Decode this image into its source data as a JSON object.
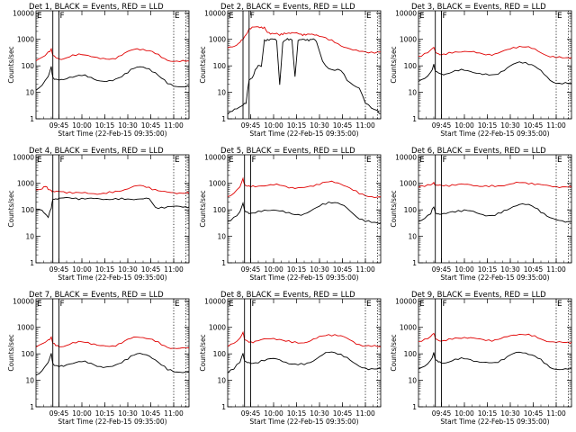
{
  "figure": {
    "x_axis_label": "Start Time (22-Feb-15 09:35:00)",
    "y_axis_label": "Counts/sec",
    "x_tick_labels": [
      "09:45",
      "10:00",
      "10:15",
      "10:30",
      "10:45",
      "11:00"
    ],
    "y_tick_labels": [
      "1",
      "10",
      "100",
      "1000",
      "10000"
    ],
    "flag_labels": [
      "E",
      "F",
      "E"
    ],
    "colors": {
      "events": "#000000",
      "lld": "#e00000",
      "markers": "#000000"
    },
    "line_styles": {
      "flare_window": "solid",
      "eclipse_markers": "dotted"
    }
  },
  "chart_data": [
    {
      "type": "line",
      "title": "Det 1, BLACK = Events, RED = LLD",
      "xlabel": "Start Time (22-Feb-15 09:35:00)",
      "ylabel": "Counts/sec",
      "x_unit": "minutes after 09:35:00",
      "yscale": "log",
      "ylim": [
        1,
        12000
      ],
      "xlim": [
        0,
        100
      ],
      "x": [
        0,
        4,
        8,
        10,
        11,
        13,
        15,
        18,
        22,
        26,
        30,
        34,
        38,
        42,
        46,
        50,
        54,
        58,
        62,
        66,
        70,
        74,
        78,
        82,
        86,
        90,
        94,
        98,
        100
      ],
      "series": [
        {
          "name": "BLACK = Events",
          "values": [
            12,
            18,
            38,
            90,
            35,
            30,
            28,
            30,
            38,
            42,
            45,
            40,
            33,
            28,
            26,
            27,
            34,
            48,
            70,
            85,
            86,
            75,
            55,
            35,
            22,
            18,
            17,
            17,
            17
          ]
        },
        {
          "name": "RED = LLD",
          "values": [
            150,
            200,
            320,
            420,
            240,
            200,
            185,
            190,
            230,
            260,
            280,
            260,
            220,
            185,
            175,
            180,
            220,
            290,
            370,
            430,
            420,
            380,
            300,
            220,
            170,
            155,
            150,
            150,
            150
          ]
        }
      ]
    },
    {
      "type": "line",
      "title": "Det 2, BLACK = Events, RED = LLD",
      "xlabel": "Start Time (22-Feb-15 09:35:00)",
      "ylabel": "Counts/sec",
      "x_unit": "minutes after 09:35:00",
      "yscale": "log",
      "ylim": [
        1,
        12000
      ],
      "xlim": [
        0,
        100
      ],
      "x": [
        0,
        3,
        6,
        8,
        10,
        12,
        14,
        16,
        18,
        20,
        22,
        24,
        26,
        28,
        30,
        32,
        34,
        36,
        38,
        40,
        42,
        44,
        46,
        48,
        50,
        52,
        54,
        56,
        58,
        62,
        66,
        70,
        74,
        78,
        82,
        86,
        90,
        94,
        98,
        100
      ],
      "series": [
        {
          "name": "BLACK = Events",
          "values": [
            1.5,
            2,
            2.5,
            3,
            3.5,
            4,
            30,
            35,
            70,
            100,
            90,
            900,
            950,
            1000,
            1000,
            900,
            20,
            800,
            1000,
            1000,
            1000,
            40,
            900,
            950,
            950,
            950,
            950,
            1000,
            800,
            150,
            80,
            70,
            70,
            30,
            20,
            15,
            4,
            2.5,
            2,
            1.5
          ]
        },
        {
          "name": "RED = LLD",
          "values": [
            500,
            550,
            650,
            800,
            1000,
            1500,
            2500,
            2800,
            2800,
            2800,
            2800,
            2800,
            1800,
            1600,
            1700,
            1800,
            1500,
            1600,
            1700,
            1800,
            1800,
            1700,
            1600,
            1500,
            1500,
            1500,
            1500,
            1500,
            1500,
            1300,
            1000,
            800,
            600,
            500,
            400,
            350,
            330,
            320,
            320,
            320
          ]
        }
      ]
    },
    {
      "type": "line",
      "title": "Det 3, BLACK = Events, RED = LLD",
      "xlabel": "Start Time (22-Feb-15 09:35:00)",
      "ylabel": "Counts/sec",
      "x_unit": "minutes after 09:35:00",
      "yscale": "log",
      "ylim": [
        1,
        12000
      ],
      "xlim": [
        0,
        100
      ],
      "x": [
        0,
        4,
        8,
        10,
        11,
        13,
        15,
        18,
        22,
        26,
        30,
        34,
        38,
        42,
        46,
        50,
        54,
        58,
        62,
        66,
        70,
        74,
        78,
        82,
        86,
        90,
        94,
        98,
        100
      ],
      "series": [
        {
          "name": "BLACK = Events",
          "values": [
            25,
            32,
            55,
            110,
            60,
            52,
            48,
            50,
            60,
            68,
            72,
            65,
            55,
            48,
            45,
            46,
            58,
            80,
            110,
            135,
            130,
            110,
            80,
            50,
            30,
            23,
            22,
            22,
            22
          ]
        },
        {
          "name": "RED = LLD",
          "values": [
            220,
            280,
            380,
            480,
            330,
            290,
            275,
            280,
            320,
            350,
            370,
            350,
            310,
            275,
            265,
            270,
            320,
            390,
            480,
            540,
            520,
            470,
            380,
            290,
            230,
            210,
            205,
            205,
            205
          ]
        }
      ]
    },
    {
      "type": "line",
      "title": "Det 4, BLACK = Events, RED = LLD",
      "xlabel": "Start Time (22-Feb-15 09:35:00)",
      "ylabel": "Counts/sec",
      "x_unit": "minutes after 09:35:00",
      "yscale": "log",
      "ylim": [
        1,
        12000
      ],
      "xlim": [
        0,
        100
      ],
      "x": [
        0,
        4,
        6,
        8,
        10,
        11,
        13,
        15,
        18,
        22,
        26,
        30,
        34,
        38,
        42,
        46,
        50,
        54,
        58,
        62,
        66,
        70,
        74,
        78,
        82,
        86,
        90,
        94,
        98,
        100
      ],
      "series": [
        {
          "name": "BLACK = Events",
          "values": [
            110,
            100,
            75,
            55,
            120,
            260,
            265,
            270,
            272,
            270,
            265,
            262,
            260,
            260,
            260,
            258,
            260,
            260,
            262,
            262,
            260,
            260,
            258,
            120,
            120,
            125,
            130,
            130,
            130,
            130
          ]
        },
        {
          "name": "RED = LLD",
          "values": [
            600,
            650,
            800,
            600,
            550,
            500,
            480,
            470,
            460,
            450,
            440,
            430,
            420,
            420,
            420,
            440,
            470,
            520,
            600,
            700,
            800,
            780,
            680,
            560,
            480,
            450,
            440,
            440,
            440,
            440
          ]
        }
      ]
    },
    {
      "type": "line",
      "title": "Det 5, BLACK = Events, RED = LLD",
      "xlabel": "Start Time (22-Feb-15 09:35:00)",
      "ylabel": "Counts/sec",
      "x_unit": "minutes after 09:35:00",
      "yscale": "log",
      "ylim": [
        1,
        12000
      ],
      "xlim": [
        0,
        100
      ],
      "x": [
        0,
        4,
        8,
        10,
        11,
        13,
        15,
        18,
        22,
        26,
        30,
        34,
        38,
        42,
        46,
        50,
        54,
        58,
        62,
        66,
        70,
        74,
        78,
        82,
        86,
        90,
        94,
        98,
        100
      ],
      "series": [
        {
          "name": "BLACK = Events",
          "values": [
            35,
            50,
            80,
            170,
            90,
            80,
            75,
            78,
            90,
            100,
            105,
            95,
            80,
            70,
            66,
            68,
            85,
            115,
            160,
            190,
            185,
            160,
            120,
            75,
            48,
            38,
            35,
            33,
            33
          ]
        },
        {
          "name": "RED = LLD",
          "values": [
            300,
            400,
            700,
            1500,
            900,
            800,
            760,
            780,
            850,
            880,
            900,
            860,
            760,
            680,
            650,
            660,
            750,
            880,
            1050,
            1150,
            1100,
            980,
            800,
            580,
            420,
            350,
            320,
            300,
            300
          ]
        }
      ]
    },
    {
      "type": "line",
      "title": "Det 6, BLACK = Events, RED = LLD",
      "xlabel": "Start Time (22-Feb-15 09:35:00)",
      "ylabel": "Counts/sec",
      "x_unit": "minutes after 09:35:00",
      "yscale": "log",
      "ylim": [
        1,
        12000
      ],
      "xlim": [
        0,
        100
      ],
      "x": [
        0,
        4,
        8,
        10,
        11,
        13,
        15,
        18,
        22,
        26,
        30,
        34,
        38,
        42,
        46,
        50,
        54,
        58,
        62,
        66,
        70,
        74,
        78,
        82,
        86,
        90,
        94,
        98,
        100
      ],
      "series": [
        {
          "name": "BLACK = Events",
          "values": [
            38,
            50,
            75,
            135,
            80,
            72,
            68,
            70,
            82,
            90,
            95,
            88,
            75,
            66,
            62,
            64,
            80,
            105,
            140,
            165,
            160,
            140,
            105,
            70,
            48,
            40,
            37,
            36,
            36
          ]
        },
        {
          "name": "RED = LLD",
          "values": [
            750,
            800,
            900,
            1100,
            850,
            820,
            800,
            810,
            850,
            880,
            900,
            880,
            840,
            800,
            790,
            800,
            850,
            920,
            1000,
            1050,
            1030,
            980,
            900,
            820,
            770,
            750,
            740,
            740,
            740
          ]
        }
      ]
    },
    {
      "type": "line",
      "title": "Det 7, BLACK = Events, RED = LLD",
      "xlabel": "Start Time (22-Feb-15 09:35:00)",
      "ylabel": "Counts/sec",
      "x_unit": "minutes after 09:35:00",
      "yscale": "log",
      "ylim": [
        1,
        12000
      ],
      "xlim": [
        0,
        100
      ],
      "x": [
        0,
        4,
        8,
        10,
        11,
        13,
        15,
        18,
        22,
        26,
        30,
        34,
        38,
        42,
        46,
        50,
        54,
        58,
        62,
        66,
        70,
        74,
        78,
        82,
        86,
        90,
        94,
        98,
        100
      ],
      "series": [
        {
          "name": "BLACK = Events",
          "values": [
            15,
            22,
            45,
            100,
            42,
            36,
            33,
            35,
            44,
            50,
            53,
            47,
            39,
            33,
            31,
            32,
            40,
            56,
            80,
            98,
            96,
            85,
            62,
            40,
            26,
            22,
            21,
            21,
            21
          ]
        },
        {
          "name": "RED = LLD",
          "values": [
            170,
            230,
            330,
            430,
            250,
            210,
            195,
            200,
            240,
            270,
            290,
            270,
            230,
            195,
            185,
            190,
            230,
            300,
            380,
            440,
            430,
            390,
            310,
            230,
            180,
            165,
            160,
            160,
            160
          ]
        }
      ]
    },
    {
      "type": "line",
      "title": "Det 8, BLACK = Events, RED = LLD",
      "xlabel": "Start Time (22-Feb-15 09:35:00)",
      "ylabel": "Counts/sec",
      "x_unit": "minutes after 09:35:00",
      "yscale": "log",
      "ylim": [
        1,
        12000
      ],
      "xlim": [
        0,
        100
      ],
      "x": [
        0,
        4,
        8,
        10,
        11,
        13,
        15,
        18,
        22,
        26,
        30,
        34,
        38,
        42,
        46,
        50,
        54,
        58,
        62,
        66,
        70,
        74,
        78,
        82,
        86,
        90,
        94,
        98,
        100
      ],
      "series": [
        {
          "name": "BLACK = Events",
          "values": [
            20,
            28,
            50,
            110,
            55,
            46,
            42,
            44,
            54,
            60,
            64,
            58,
            48,
            42,
            40,
            41,
            50,
            68,
            95,
            115,
            110,
            95,
            70,
            45,
            32,
            28,
            27,
            27,
            27
          ]
        },
        {
          "name": "RED = LLD",
          "values": [
            200,
            260,
            400,
            650,
            330,
            290,
            275,
            285,
            330,
            360,
            380,
            360,
            310,
            280,
            270,
            275,
            320,
            390,
            470,
            520,
            510,
            460,
            370,
            280,
            220,
            200,
            195,
            195,
            195
          ]
        }
      ]
    },
    {
      "type": "line",
      "title": "Det 9, BLACK = Events, RED = LLD",
      "xlabel": "Start Time (22-Feb-15 09:35:00)",
      "ylabel": "Counts/sec",
      "x_unit": "minutes after 09:35:00",
      "yscale": "log",
      "ylim": [
        1,
        12000
      ],
      "xlim": [
        0,
        100
      ],
      "x": [
        0,
        4,
        8,
        10,
        11,
        13,
        15,
        18,
        22,
        26,
        30,
        34,
        38,
        42,
        46,
        50,
        54,
        58,
        62,
        66,
        70,
        74,
        78,
        82,
        86,
        90,
        94,
        98,
        100
      ],
      "series": [
        {
          "name": "BLACK = Events",
          "values": [
            25,
            32,
            55,
            110,
            58,
            50,
            46,
            48,
            58,
            65,
            68,
            62,
            52,
            46,
            44,
            45,
            56,
            75,
            100,
            115,
            110,
            95,
            72,
            48,
            32,
            27,
            26,
            26,
            26
          ]
        },
        {
          "name": "RED = LLD",
          "values": [
            280,
            350,
            450,
            600,
            380,
            340,
            320,
            330,
            370,
            400,
            420,
            400,
            360,
            330,
            320,
            325,
            370,
            440,
            520,
            570,
            550,
            500,
            420,
            340,
            290,
            270,
            265,
            265,
            265
          ]
        }
      ]
    }
  ]
}
